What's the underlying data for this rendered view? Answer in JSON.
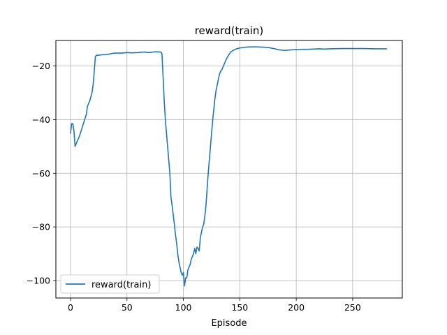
{
  "chart_data": {
    "type": "line",
    "title": "reward(train)",
    "xlabel": "Episode",
    "ylabel": "",
    "xlim": [
      -13,
      294
    ],
    "ylim": [
      -106.5,
      -10.5
    ],
    "xticks": [
      0,
      50,
      100,
      150,
      200,
      250
    ],
    "yticks": [
      -100,
      -80,
      -60,
      -40,
      -20
    ],
    "grid": true,
    "legend_position": "lower-left",
    "series": [
      {
        "name": "reward(train)",
        "color": "#1f77b4",
        "x": [
          0,
          1,
          2,
          3,
          4,
          5,
          8,
          11,
          14,
          15,
          17,
          19,
          20,
          21,
          22,
          23,
          24,
          25,
          28,
          30,
          33,
          37,
          40,
          45,
          50,
          55,
          60,
          65,
          70,
          75,
          80,
          81,
          82,
          83,
          84,
          86,
          88,
          89,
          90,
          92,
          93,
          94,
          95,
          96,
          97,
          98,
          99,
          100,
          101,
          102,
          103,
          104,
          105,
          106,
          107,
          108,
          109,
          110,
          111,
          112,
          113,
          114,
          115,
          116,
          117,
          118,
          119,
          120,
          121,
          122,
          123,
          124,
          125,
          126,
          127,
          128,
          129,
          130,
          131,
          132,
          133,
          134,
          135,
          136,
          137,
          138,
          140,
          142,
          144,
          146,
          148,
          150,
          155,
          160,
          165,
          170,
          175,
          180,
          185,
          190,
          195,
          200,
          205,
          210,
          215,
          220,
          225,
          230,
          240,
          250,
          260,
          270,
          280
        ],
        "y": [
          -45,
          -41.5,
          -41.5,
          -44,
          -50,
          -49,
          -46,
          -42,
          -38,
          -35,
          -33,
          -30,
          -27,
          -22,
          -16.5,
          -16,
          -16,
          -16,
          -15.8,
          -15.8,
          -15.7,
          -15.3,
          -15.2,
          -15.2,
          -15.0,
          -15.1,
          -15.0,
          -14.8,
          -15.0,
          -14.7,
          -14.8,
          -15.5,
          -24,
          -33,
          -40,
          -50,
          -60,
          -69,
          -72,
          -79,
          -83,
          -86,
          -90,
          -93,
          -95,
          -97,
          -98,
          -97,
          -102,
          -99,
          -99,
          -96,
          -95,
          -94,
          -92,
          -91,
          -90,
          -88,
          -90,
          -87.5,
          -88,
          -89,
          -84,
          -82,
          -80,
          -79,
          -76,
          -72,
          -66,
          -60,
          -55,
          -50,
          -45,
          -40,
          -36,
          -32,
          -29,
          -27,
          -25,
          -23,
          -22,
          -21.5,
          -20.5,
          -19.5,
          -18.5,
          -17.5,
          -16,
          -14.8,
          -14.2,
          -13.8,
          -13.5,
          -13.3,
          -13.0,
          -12.9,
          -12.9,
          -13.0,
          -13.1,
          -13.5,
          -14.0,
          -14.2,
          -14.0,
          -13.9,
          -13.8,
          -13.8,
          -13.7,
          -13.6,
          -13.7,
          -13.6,
          -13.5,
          -13.5,
          -13.5,
          -13.6,
          -13.6
        ]
      }
    ]
  }
}
